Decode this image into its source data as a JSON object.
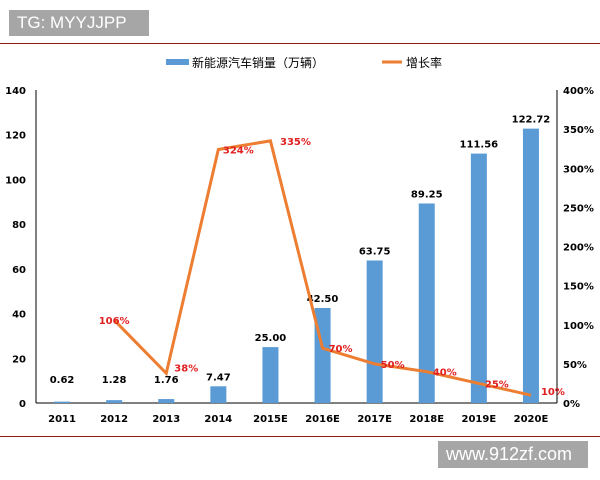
{
  "watermarks": {
    "top_left": "TG: MYYJJPP",
    "bottom_right": "www.912zf.com"
  },
  "chart_data": {
    "type": "bar+line",
    "categories": [
      "2011",
      "2012",
      "2013",
      "2014",
      "2015E",
      "2016E",
      "2017E",
      "2018E",
      "2019E",
      "2020E"
    ],
    "series": [
      {
        "name": "新能源汽车销量（万辆）",
        "type": "bar",
        "axis": "left",
        "color": "#5b9bd5",
        "values": [
          0.62,
          1.28,
          1.76,
          7.47,
          25.0,
          42.5,
          63.75,
          89.25,
          111.56,
          122.72
        ],
        "labels": [
          "0.62",
          "1.28",
          "1.76",
          "7.47",
          "25.00",
          "42.50",
          "63.75",
          "89.25",
          "111.56",
          "122.72"
        ]
      },
      {
        "name": "增长率",
        "type": "line",
        "axis": "right",
        "color": "#ed7d31",
        "label_color": "#e02020",
        "values": [
          null,
          106,
          38,
          324,
          335,
          70,
          50,
          40,
          25,
          10
        ],
        "labels": [
          null,
          "106%",
          "38%",
          "324%",
          "335%",
          "70%",
          "50%",
          "40%",
          "25%",
          "10%"
        ]
      }
    ],
    "left_axis": {
      "ylim": [
        0,
        140
      ],
      "ticks": [
        "0",
        "20",
        "40",
        "60",
        "80",
        "100",
        "120",
        "140"
      ]
    },
    "right_axis": {
      "ylim": [
        0,
        400
      ],
      "ticks": [
        "0%",
        "50%",
        "100%",
        "150%",
        "200%",
        "250%",
        "300%",
        "350%",
        "400%"
      ]
    },
    "legend_placement": "top-center",
    "grid": false
  }
}
